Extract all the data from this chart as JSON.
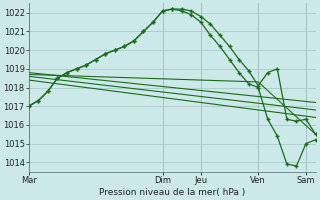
{
  "bg_color": "#cce8e8",
  "grid_color": "#aacccc",
  "line_color": "#1a6b1a",
  "title": "Pression niveau de la mer( hPa )",
  "ylim": [
    1013.5,
    1022.5
  ],
  "yticks": [
    1014,
    1015,
    1016,
    1017,
    1018,
    1019,
    1020,
    1021,
    1022
  ],
  "day_labels": [
    "Mar",
    "Dim",
    "Jeu",
    "Ven",
    "Sam"
  ],
  "day_positions": [
    0,
    56,
    72,
    96,
    116
  ],
  "xlim": [
    0,
    120
  ],
  "line1_x": [
    0,
    4,
    8,
    12,
    16,
    20,
    24,
    28,
    32,
    36,
    40,
    44,
    48,
    52,
    56,
    60,
    64,
    68,
    72,
    76,
    80,
    84,
    88,
    92,
    96,
    100,
    104,
    108,
    112,
    116,
    120
  ],
  "line1_y": [
    1017.0,
    1017.3,
    1017.8,
    1018.5,
    1018.8,
    1019.0,
    1019.2,
    1019.5,
    1019.8,
    1020.0,
    1020.2,
    1020.5,
    1021.0,
    1021.5,
    1022.1,
    1022.2,
    1022.2,
    1022.1,
    1021.8,
    1021.4,
    1020.8,
    1020.2,
    1019.5,
    1018.9,
    1018.1,
    1018.8,
    1019.0,
    1016.3,
    1016.2,
    1016.3,
    1015.5
  ],
  "line2_x": [
    0,
    120
  ],
  "line2_y": [
    1018.8,
    1017.2
  ],
  "line3_x": [
    0,
    120
  ],
  "line3_y": [
    1018.6,
    1016.8
  ],
  "line4_x": [
    0,
    120
  ],
  "line4_y": [
    1018.4,
    1016.4
  ],
  "line5_x": [
    0,
    96,
    120
  ],
  "line5_y": [
    1018.7,
    1018.3,
    1015.5
  ],
  "line6_x": [
    0,
    4,
    8,
    12,
    16,
    20,
    24,
    28,
    32,
    36,
    40,
    44,
    48,
    52,
    56,
    60,
    64,
    68,
    72,
    76,
    80,
    84,
    88,
    92,
    96,
    100,
    104,
    108,
    112,
    116,
    120
  ],
  "line6_y": [
    1017.0,
    1017.3,
    1017.8,
    1018.5,
    1018.8,
    1019.0,
    1019.2,
    1019.5,
    1019.8,
    1020.0,
    1020.2,
    1020.5,
    1021.0,
    1021.5,
    1022.1,
    1022.2,
    1022.1,
    1021.9,
    1021.5,
    1020.8,
    1020.2,
    1019.5,
    1018.8,
    1018.2,
    1018.0,
    1016.3,
    1015.4,
    1013.9,
    1013.8,
    1015.0,
    1015.2
  ]
}
